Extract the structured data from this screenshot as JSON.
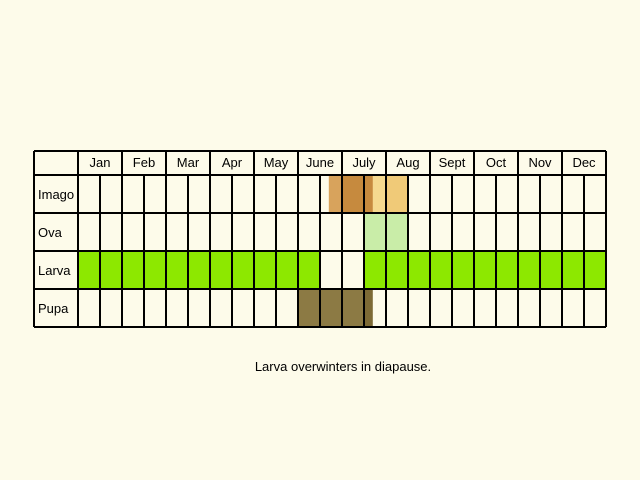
{
  "months": [
    "Jan",
    "Feb",
    "Mar",
    "Apr",
    "May",
    "June",
    "July",
    "Aug",
    "Sept",
    "Oct",
    "Nov",
    "Dec"
  ],
  "stages": [
    "Imago",
    "Ova",
    "Larva",
    "Pupa"
  ],
  "caption": "Larva overwinters in diapause.",
  "colors": {
    "background": "#fdfbea",
    "grid": "#000000",
    "imago_light": "#d8a35c",
    "imago_dark": "#c68a3e",
    "imago_pale": "#f0ca78",
    "imago_pale2": "#f5d98f",
    "ova": "#c9eda8",
    "larva": "#8de800",
    "pupa": "#8c7a44",
    "pupa_dark": "#7d6a35"
  },
  "chart_data": {
    "type": "table",
    "columns": [
      "Jan",
      "Feb",
      "Mar",
      "Apr",
      "May",
      "June",
      "July",
      "Aug",
      "Sept",
      "Oct",
      "Nov",
      "Dec"
    ],
    "rows": [
      "Imago",
      "Ova",
      "Larva",
      "Pupa"
    ],
    "periods_per_month": 2,
    "occupancy": [
      {
        "stage": "Imago",
        "from_month": 5.7,
        "to_month": 7.0,
        "color": "imago_light"
      },
      {
        "stage": "Imago",
        "from_month": 6.0,
        "to_month": 6.7,
        "color": "imago_dark"
      },
      {
        "stage": "Imago",
        "from_month": 6.7,
        "to_month": 7.0,
        "color": "imago_pale2"
      },
      {
        "stage": "Imago",
        "from_month": 7.0,
        "to_month": 7.5,
        "color": "imago_pale"
      },
      {
        "stage": "Ova",
        "from_month": 6.5,
        "to_month": 7.5,
        "color": "ova"
      },
      {
        "stage": "Larva",
        "from_month": 0.0,
        "to_month": 5.5,
        "color": "larva"
      },
      {
        "stage": "Larva",
        "from_month": 6.5,
        "to_month": 12.0,
        "color": "larva"
      },
      {
        "stage": "Pupa",
        "from_month": 5.0,
        "to_month": 6.5,
        "color": "pupa"
      },
      {
        "stage": "Pupa",
        "from_month": 6.5,
        "to_month": 6.7,
        "color": "pupa_dark"
      }
    ]
  }
}
